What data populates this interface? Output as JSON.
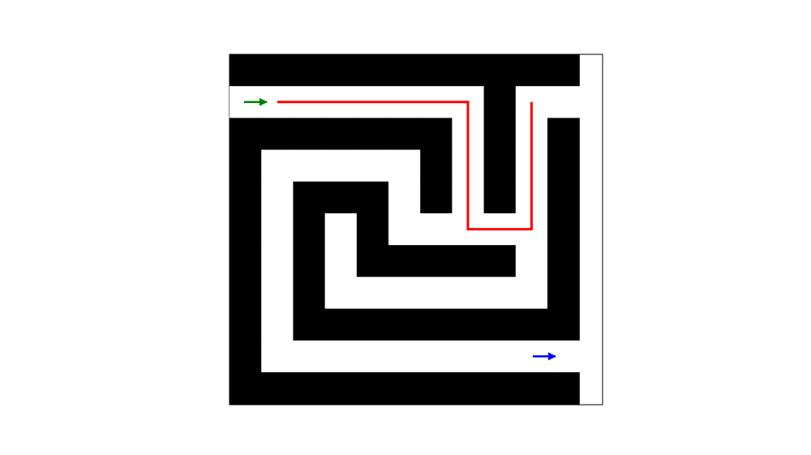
{
  "maze": {
    "rows": 11,
    "cols": 11,
    "wall_color": "#000000",
    "path_color": "#ffffff",
    "grid": [
      "###########",
      "........#..",
      "#######.#.#",
      "#.....#.#.#",
      "#.###.#.#.#",
      "#.#.#.....#",
      "#.#.#####.#",
      "#.#.......#",
      "#.#########",
      "#..........",
      "###########"
    ],
    "start": {
      "row": 1,
      "col": 0,
      "icon": "start-arrow-icon",
      "color": "#008000"
    },
    "goal": {
      "row": 9,
      "col": 10,
      "icon": "goal-arrow-icon",
      "color": "#0000ff"
    },
    "route": {
      "color": "#ff0000",
      "cells": [
        [
          1,
          1
        ],
        [
          1,
          7
        ],
        [
          5,
          7
        ],
        [
          5,
          9
        ],
        [
          1,
          9
        ]
      ]
    }
  }
}
